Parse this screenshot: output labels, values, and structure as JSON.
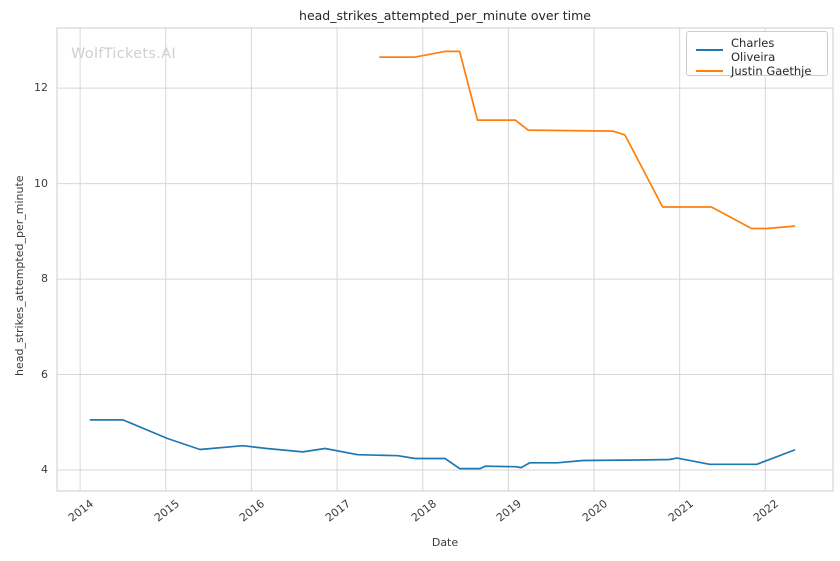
{
  "watermark": "WolfTickets.AI",
  "chart_data": {
    "type": "line",
    "title": "head_strikes_attempted_per_minute over time",
    "xlabel": "Date",
    "ylabel": "head_strikes_attempted_per_minute",
    "x_range": [
      2013.73,
      2022.79
    ],
    "y_range": [
      3.56,
      13.26
    ],
    "x_ticks": [
      2014,
      2015,
      2016,
      2017,
      2018,
      2019,
      2020,
      2021,
      2022
    ],
    "y_ticks": [
      4,
      6,
      8,
      10,
      12
    ],
    "grid": true,
    "grid_color": "#d7d7d7",
    "spine_color": "#cccccc",
    "legend_position": "upper right",
    "series": [
      {
        "name": "Charles Oliveira",
        "color": "#1f77b4",
        "x": [
          2014.12,
          2014.5,
          2015.02,
          2015.4,
          2015.9,
          2016.18,
          2016.6,
          2016.86,
          2017.24,
          2017.71,
          2017.91,
          2018.26,
          2018.43,
          2018.67,
          2018.73,
          2019.08,
          2019.15,
          2019.25,
          2019.57,
          2019.87,
          2020.53,
          2020.88,
          2020.97,
          2021.35,
          2021.9,
          2022.34
        ],
        "y": [
          5.05,
          5.05,
          4.66,
          4.43,
          4.51,
          4.45,
          4.38,
          4.45,
          4.32,
          4.3,
          4.24,
          4.24,
          4.03,
          4.03,
          4.08,
          4.07,
          4.05,
          4.15,
          4.15,
          4.2,
          4.21,
          4.22,
          4.25,
          4.12,
          4.12,
          4.42
        ]
      },
      {
        "name": "Justin Gaethje",
        "color": "#ff7f0e",
        "x": [
          2017.5,
          2017.91,
          2018.26,
          2018.43,
          2018.64,
          2019.08,
          2019.23,
          2020.22,
          2020.36,
          2020.8,
          2021.37,
          2021.84,
          2022.02,
          2022.34
        ],
        "y": [
          12.65,
          12.65,
          12.77,
          12.77,
          11.33,
          11.33,
          11.12,
          11.1,
          11.02,
          9.51,
          9.51,
          9.06,
          9.06,
          9.11
        ]
      }
    ]
  }
}
